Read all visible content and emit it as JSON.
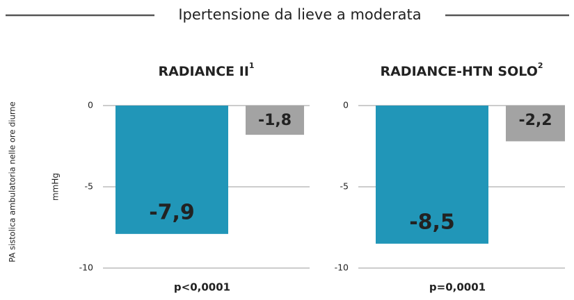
{
  "title": "Ipertensione da lieve a moderata",
  "y_axis_label": "PA sistolica ambulatoria nelle ore diurne",
  "chart_data": [
    {
      "type": "bar",
      "title": "RADIANCE II",
      "title_ref": "1",
      "y_label": "mmHg",
      "categories": [
        null,
        null
      ],
      "values": [
        -7.9,
        -1.8
      ],
      "value_labels": [
        "-7,9",
        "-1,8"
      ],
      "colors": [
        "#2196b8",
        "#a3a3a3"
      ],
      "ylim": [
        -10,
        0
      ],
      "yticks": [
        0,
        -5,
        -10
      ],
      "grid": true,
      "annotation": "p<0,0001"
    },
    {
      "type": "bar",
      "title": "RADIANCE-HTN SOLO",
      "title_ref": "2",
      "categories": [
        null,
        null
      ],
      "values": [
        -8.5,
        -2.2
      ],
      "value_labels": [
        "-8,5",
        "-2,2"
      ],
      "colors": [
        "#2196b8",
        "#a3a3a3"
      ],
      "ylim": [
        -10,
        0
      ],
      "yticks": [
        0,
        -5,
        -10
      ],
      "grid": true,
      "annotation": "p=0,0001"
    }
  ]
}
